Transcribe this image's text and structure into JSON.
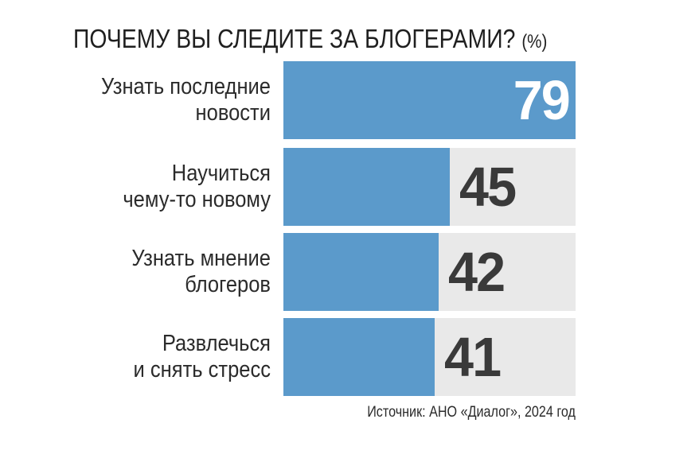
{
  "chart_data": {
    "type": "bar",
    "orientation": "horizontal",
    "title": "ПОЧЕМУ ВЫ СЛЕДИТЕ ЗА БЛОГЕРАМИ?",
    "unit_label": "(%)",
    "categories": [
      [
        "Узнать последние",
        "новости"
      ],
      [
        "Научиться",
        "чему-то новому"
      ],
      [
        "Узнать мнение",
        "блогеров"
      ],
      [
        "Развлечься",
        "и снять стресс"
      ]
    ],
    "values": [
      79,
      45,
      42,
      41
    ],
    "xlim": [
      0,
      79
    ],
    "grid": false,
    "source": "Источник: АНО «Диалог», 2024 год",
    "colors": {
      "bar": "#5b9acb",
      "track": "#e9e9e9",
      "value_text": "#3a3a3a"
    }
  }
}
